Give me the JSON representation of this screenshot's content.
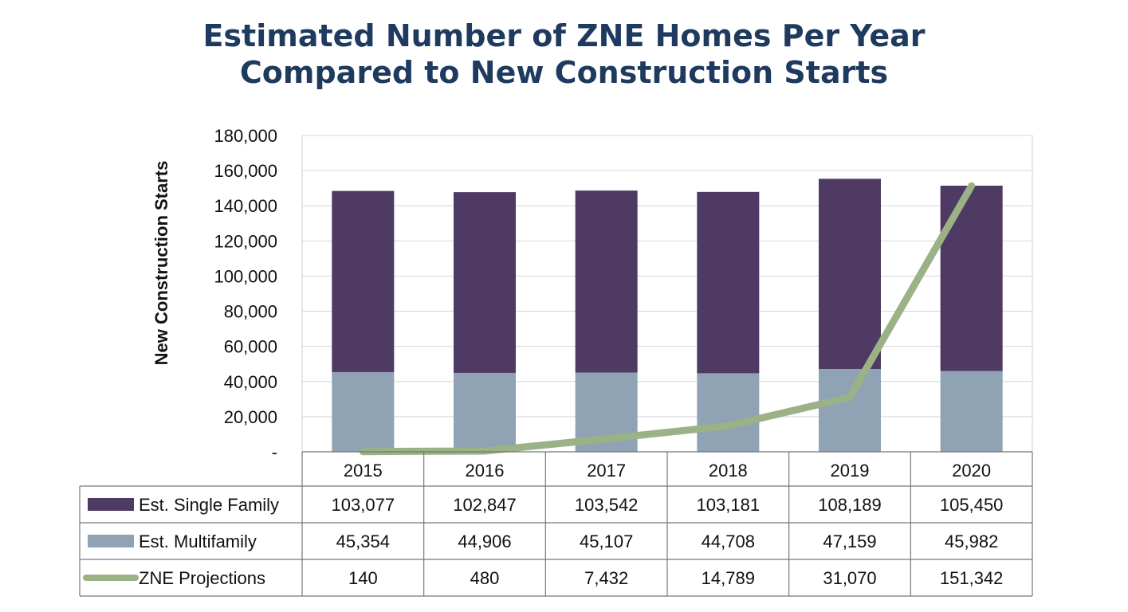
{
  "title_lines": [
    "Estimated Number of ZNE Homes Per Year",
    "Compared to New Construction Starts"
  ],
  "chart_data": {
    "type": "bar",
    "stacked": true,
    "ylabel": "New Construction Starts",
    "ylim": [
      0,
      180000
    ],
    "yticks": [
      "-",
      "20,000",
      "40,000",
      "60,000",
      "80,000",
      "100,000",
      "120,000",
      "140,000",
      "160,000",
      "180,000"
    ],
    "grid": true,
    "categories": [
      "2015",
      "2016",
      "2017",
      "2018",
      "2019",
      "2020"
    ],
    "series": [
      {
        "name": "Est. Single Family",
        "kind": "bar",
        "color": "#4e3a63",
        "values": [
          103077,
          102847,
          103542,
          103181,
          108189,
          105450
        ],
        "labels": [
          "103,077",
          "102,847",
          "103,542",
          "103,181",
          "108,189",
          "105,450"
        ]
      },
      {
        "name": "Est. Multifamily",
        "kind": "bar",
        "color": "#8fa3b4",
        "values": [
          45354,
          44906,
          45107,
          44708,
          47159,
          45982
        ],
        "labels": [
          "45,354",
          "44,906",
          "45,107",
          "44,708",
          "47,159",
          "45,982"
        ]
      },
      {
        "name": "ZNE Projections",
        "kind": "line",
        "color": "#9bb186",
        "values": [
          140,
          480,
          7432,
          14789,
          31070,
          151342
        ],
        "labels": [
          "140",
          "480",
          "7,432",
          "14,789",
          "31,070",
          "151,342"
        ]
      }
    ],
    "legend": "data-table"
  }
}
